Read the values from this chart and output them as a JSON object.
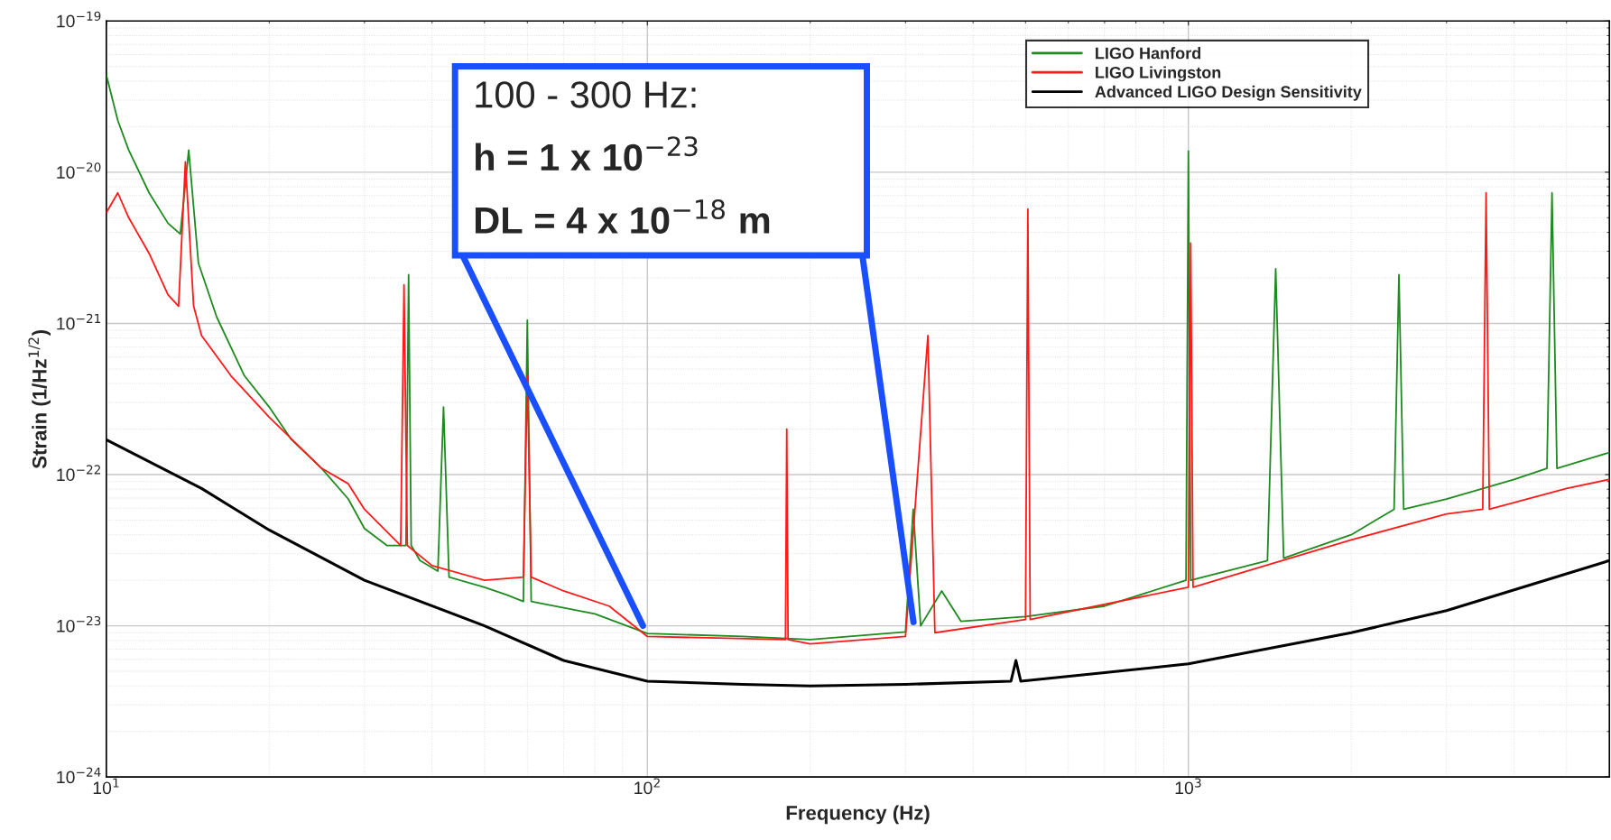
{
  "chart_data": {
    "type": "line",
    "xlabel": "Frequency (Hz)",
    "ylabel": "Strain (1/Hz$^{1/2}$)",
    "log": "xy",
    "grid": true,
    "legend": "top right",
    "line_style": "solid",
    "marker": "none",
    "xlim": [
      10,
      6000
    ],
    "ylim": [
      1e-24,
      1e-19
    ],
    "xticks": [
      {
        "value": 10,
        "label": "10$^{1}$"
      },
      {
        "value": 100,
        "label": "10$^{2}$"
      },
      {
        "value": 1000,
        "label": "10$^{3}$"
      }
    ],
    "yticks": [
      {
        "value": 1e-24,
        "label": "10$^{−24}$"
      },
      {
        "value": 1e-23,
        "label": "10$^{−23}$"
      },
      {
        "value": 1e-22,
        "label": "10$^{−22}$"
      },
      {
        "value": 1e-21,
        "label": "10$^{−21}$"
      },
      {
        "value": 1e-20,
        "label": "10$^{−20}$"
      },
      {
        "value": 1e-19,
        "label": "10$^{−19}$"
      }
    ],
    "series": [
      {
        "name": "LIGO Hanford",
        "color": "#1f8a1f",
        "x": [
          10,
          10.5,
          11,
          12,
          13,
          13.7,
          14.2,
          14.8,
          16,
          18,
          20,
          22,
          25,
          28,
          30,
          33,
          35.8,
          36.2,
          36.6,
          38,
          41,
          42,
          43,
          50,
          55,
          59,
          60,
          61,
          80,
          100,
          150,
          200,
          300,
          310,
          320,
          350,
          380,
          500,
          700,
          990,
          1000,
          1010,
          1400,
          1450,
          1500,
          2000,
          2400,
          2450,
          2500,
          3000,
          4000,
          4600,
          4700,
          4800,
          6000
        ],
        "values": [
          4.4e-20,
          2.2e-20,
          1.4e-20,
          7.3e-21,
          4.6e-21,
          3.9e-21,
          1.4e-20,
          2.5e-21,
          1.1e-21,
          4.5e-22,
          2.8e-22,
          1.7e-22,
          1.1e-22,
          6.9e-23,
          4.4e-23,
          3.4e-23,
          3.4e-23,
          2.1e-21,
          3.4e-23,
          2.7e-23,
          2.3e-23,
          2.8e-22,
          2.1e-23,
          1.8e-23,
          1.6e-23,
          1.45e-23,
          1.05e-21,
          1.45e-23,
          1.2e-23,
          8.9e-24,
          8.5e-24,
          8.1e-24,
          9.1e-24,
          5.9e-23,
          1e-23,
          1.7e-23,
          1.07e-23,
          1.15e-23,
          1.35e-23,
          2e-23,
          1.38e-20,
          2e-23,
          2.7e-23,
          2.3e-21,
          2.8e-23,
          4e-23,
          5.9e-23,
          2.1e-21,
          5.9e-23,
          6.9e-23,
          9.3e-23,
          1.1e-22,
          7.3e-21,
          1.1e-22,
          1.4e-22
        ]
      },
      {
        "name": "LIGO Livingston",
        "color": "#ff1a1a",
        "x": [
          10,
          10.5,
          11,
          12,
          13,
          13.6,
          14,
          14.5,
          15,
          17,
          20,
          25,
          28,
          30,
          35,
          35.5,
          36,
          40,
          50,
          59,
          60,
          61,
          70,
          85,
          100,
          180,
          181,
          182,
          200,
          300,
          330,
          340,
          500,
          505,
          510,
          1000,
          1010,
          1020,
          2000,
          3000,
          3500,
          3550,
          3600,
          5000,
          6000
        ],
        "values": [
          5.4e-21,
          7.3e-21,
          5e-21,
          2.9e-21,
          1.55e-21,
          1.3e-21,
          1.17e-20,
          1.3e-21,
          8.3e-22,
          4.5e-22,
          2.4e-22,
          1.1e-22,
          8.7e-23,
          5.9e-23,
          3.4e-23,
          1.8e-21,
          3.4e-23,
          2.5e-23,
          2e-23,
          2.1e-23,
          4.5e-22,
          2.1e-23,
          1.7e-23,
          1.35e-23,
          8.5e-24,
          8.1e-24,
          2e-22,
          8.1e-24,
          7.6e-24,
          8.5e-24,
          8.3e-22,
          9e-24,
          1.1e-23,
          5.7e-21,
          1.1e-23,
          1.8e-23,
          3.4e-21,
          1.8e-23,
          3.7e-23,
          5.5e-23,
          5.9e-23,
          7.3e-21,
          5.9e-23,
          8.1e-23,
          9.3e-23
        ]
      },
      {
        "name": "Advanced LIGO Design Sensitivity",
        "color": "#000000",
        "x": [
          10,
          15,
          20,
          30,
          50,
          70,
          100,
          150,
          200,
          300,
          470,
          480,
          490,
          700,
          1000,
          2000,
          3000,
          6000
        ],
        "values": [
          1.7e-22,
          8.1e-23,
          4.3e-23,
          2e-23,
          1e-23,
          5.9e-24,
          4.3e-24,
          4.1e-24,
          4e-24,
          4.1e-24,
          4.3e-24,
          5.9e-24,
          4.3e-24,
          4.9e-24,
          5.6e-24,
          9e-24,
          1.26e-23,
          2.7e-23
        ]
      }
    ],
    "annotations": [
      "100 - 300 Hz:",
      "h = 1 x 10$^{−23}$",
      "DL = 4 x 10$^{−18}$ m"
    ]
  }
}
